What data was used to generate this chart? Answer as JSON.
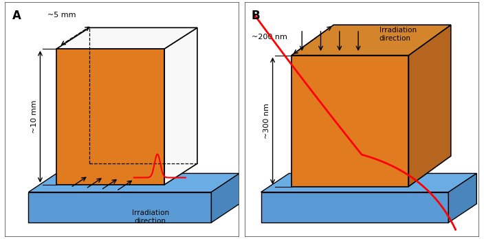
{
  "fig_width": 7.04,
  "fig_height": 3.48,
  "dpi": 100,
  "background_color": "#ffffff",
  "panel_A": {
    "label": "A",
    "base_front_color": "#5b9bd5",
    "base_top_color": "#6aade4",
    "base_side_color": "#4a86be",
    "cube_front_color": "#e07b20",
    "cube_top_color": "#f8f8f8",
    "cube_side_color": "#c8c8c8",
    "dim_width": "~5 mm",
    "dim_height": "~10 mm",
    "irr_label": "Irradiation\ndirection"
  },
  "panel_B": {
    "label": "B",
    "base_front_color": "#5b9bd5",
    "base_top_color": "#6aade4",
    "base_side_color": "#4a86be",
    "cube_front_color": "#e07b20",
    "cube_top_color": "#d4842a",
    "cube_side_color": "#b5651d",
    "dim_width": "~200 nm",
    "dim_height": "~300 nm",
    "irr_label": "Irradiation\ndirection"
  },
  "red_color": "#ff0000",
  "black": "#000000"
}
